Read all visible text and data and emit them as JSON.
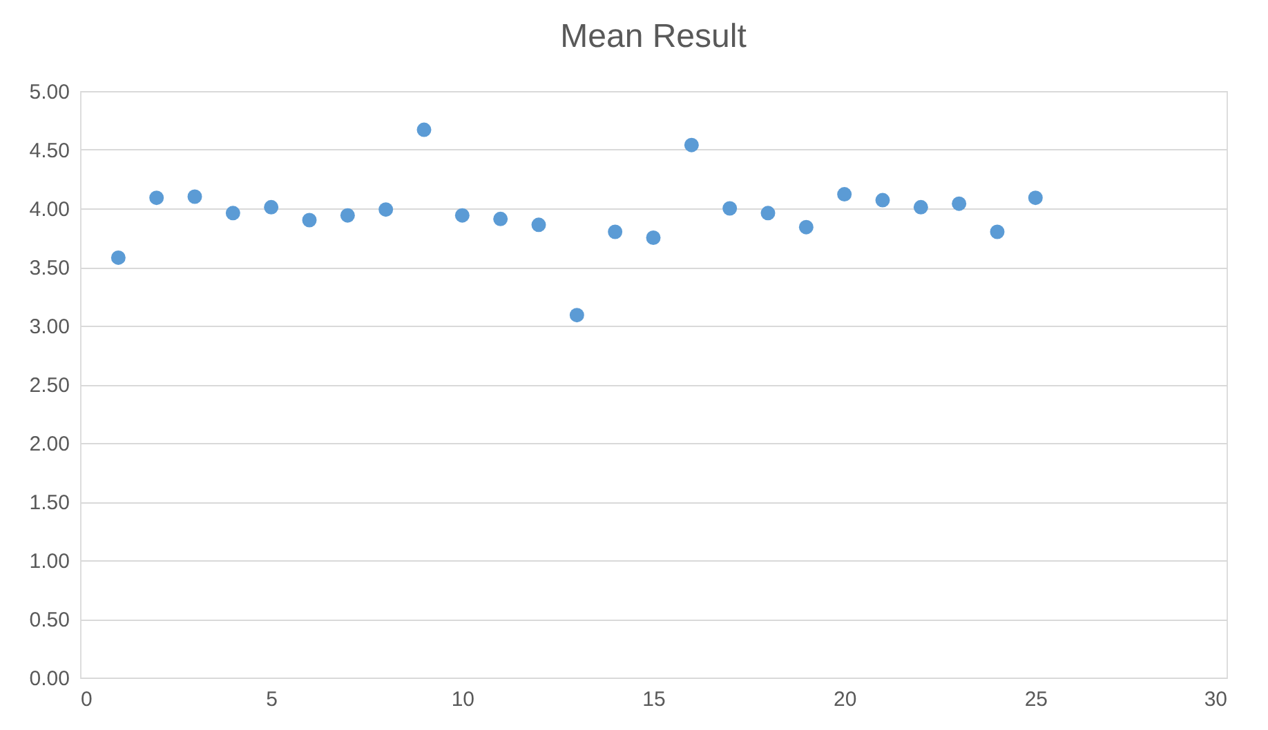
{
  "chart_data": {
    "type": "scatter",
    "title": "Mean Result",
    "x": [
      1,
      2,
      3,
      4,
      5,
      6,
      7,
      8,
      9,
      10,
      11,
      12,
      13,
      14,
      15,
      16,
      17,
      18,
      19,
      20,
      21,
      22,
      23,
      24,
      25
    ],
    "series": [
      {
        "color": "#5b9bd5",
        "values": [
          3.58,
          4.09,
          4.1,
          3.96,
          4.01,
          3.9,
          3.94,
          3.99,
          4.67,
          3.94,
          3.91,
          3.86,
          3.09,
          3.8,
          3.75,
          4.54,
          4.0,
          3.96,
          3.84,
          4.12,
          4.07,
          4.01,
          4.04,
          3.8,
          4.09
        ]
      }
    ],
    "xlim": [
      0,
      30
    ],
    "xticks": [
      0,
      5,
      10,
      15,
      20,
      25,
      30
    ],
    "ylim": [
      0,
      5
    ],
    "yticks": [
      {
        "value": 0,
        "label": "0.00"
      },
      {
        "value": 0.5,
        "label": "0.50"
      },
      {
        "value": 1,
        "label": "1.00"
      },
      {
        "value": 1.5,
        "label": "1.50"
      },
      {
        "value": 2,
        "label": "2.00"
      },
      {
        "value": 2.5,
        "label": "2.50"
      },
      {
        "value": 3,
        "label": "3.00"
      },
      {
        "value": 3.5,
        "label": "3.50"
      },
      {
        "value": 4,
        "label": "4.00"
      },
      {
        "value": 4.5,
        "label": "4.50"
      },
      {
        "value": 5,
        "label": "5.00"
      }
    ],
    "grid": "y",
    "marker": "circle"
  }
}
